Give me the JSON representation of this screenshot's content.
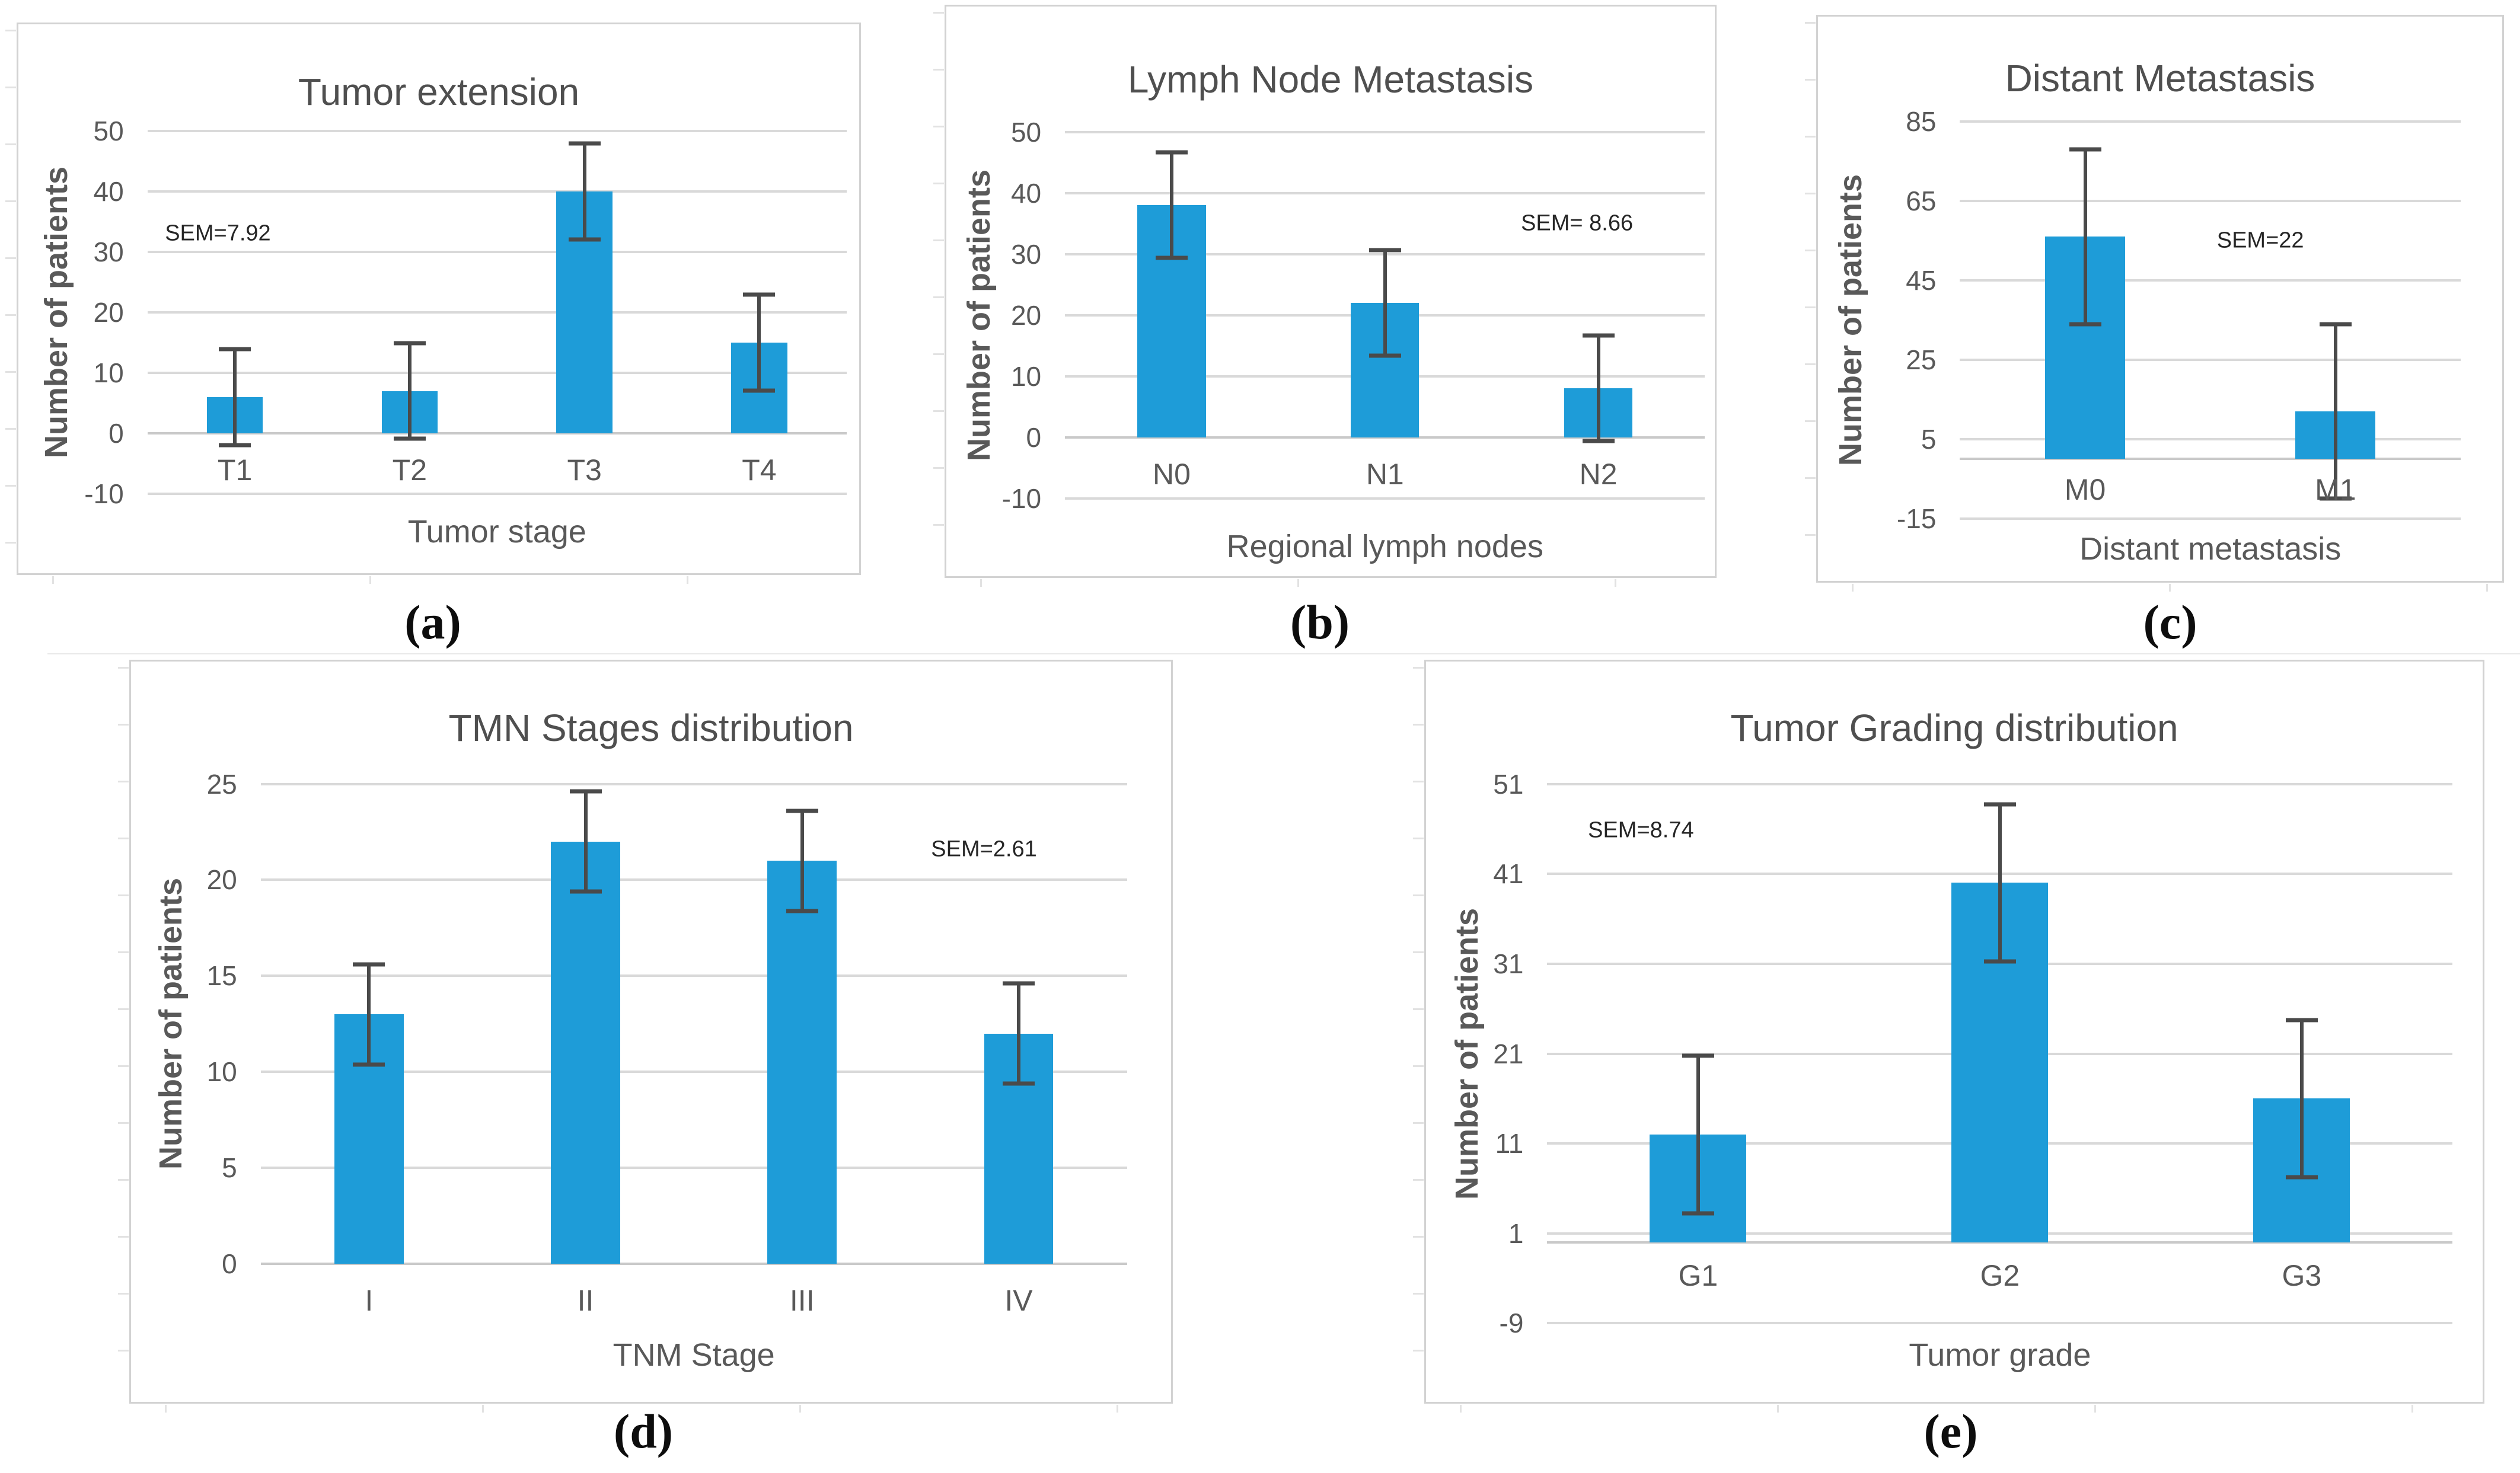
{
  "colors": {
    "bar": "#1E9CD8",
    "gridline": "#D9D9D9",
    "zero_axis": "#C9C9C9",
    "error_bar": "#4A4A4A",
    "label_text": "#595959",
    "title_text": "#4F4F4F",
    "frame_border": "#D2D2D2"
  },
  "chart_data": [
    {
      "panel": "(a)",
      "type": "bar",
      "title": "Tumor extension",
      "xlabel": "Tumor stage",
      "ylabel": "Number of patients",
      "categories": [
        "T1",
        "T2",
        "T3",
        "T4"
      ],
      "values": [
        6,
        7,
        40,
        15
      ],
      "error_sem": 7.92,
      "sem_label": "SEM=7.92",
      "yticks": [
        50,
        40,
        30,
        20,
        10,
        0,
        -10
      ],
      "ylim": [
        -10,
        50
      ],
      "grid": true,
      "legend": "none"
    },
    {
      "panel": "(b)",
      "type": "bar",
      "title": "Lymph Node Metastasis",
      "xlabel": "Regional lymph nodes",
      "ylabel": "Number of patients",
      "categories": [
        "N0",
        "N1",
        "N2"
      ],
      "values": [
        38,
        22,
        8
      ],
      "error_sem": 8.66,
      "sem_label": "SEM= 8.66",
      "yticks": [
        50,
        40,
        30,
        20,
        10,
        0,
        -10
      ],
      "ylim": [
        -10,
        50
      ],
      "grid": true,
      "legend": "none"
    },
    {
      "panel": "(c)",
      "type": "bar",
      "title": "Distant Metastasis",
      "xlabel": "Distant metastasis",
      "ylabel": "Number of patients",
      "categories": [
        "M0",
        "M1"
      ],
      "values": [
        56,
        12
      ],
      "error_sem": 22,
      "sem_label": "SEM=22",
      "yticks": [
        85,
        65,
        45,
        25,
        5,
        -15
      ],
      "ylim": [
        -15,
        85
      ],
      "grid": true,
      "legend": "none"
    },
    {
      "panel": "(d)",
      "type": "bar",
      "title": "TMN Stages distribution",
      "xlabel": "TNM Stage",
      "ylabel": "Number of patients",
      "categories": [
        "I",
        "II",
        "III",
        "IV"
      ],
      "values": [
        13,
        22,
        21,
        12
      ],
      "error_sem": 2.61,
      "sem_label": "SEM=2.61",
      "yticks": [
        25,
        20,
        15,
        10,
        5,
        0
      ],
      "ylim": [
        0,
        25
      ],
      "grid": true,
      "legend": "none"
    },
    {
      "panel": "(e)",
      "type": "bar",
      "title": "Tumor Grading distribution",
      "xlabel": "Tumor grade",
      "ylabel": "Number of patients",
      "categories": [
        "G1",
        "G2",
        "G3"
      ],
      "values": [
        12,
        40,
        16
      ],
      "error_sem": 8.74,
      "sem_label": "SEM=8.74",
      "yticks": [
        51,
        41,
        31,
        21,
        11,
        1,
        -9
      ],
      "ylim": [
        -9,
        51
      ],
      "grid": true,
      "legend": "none"
    }
  ]
}
